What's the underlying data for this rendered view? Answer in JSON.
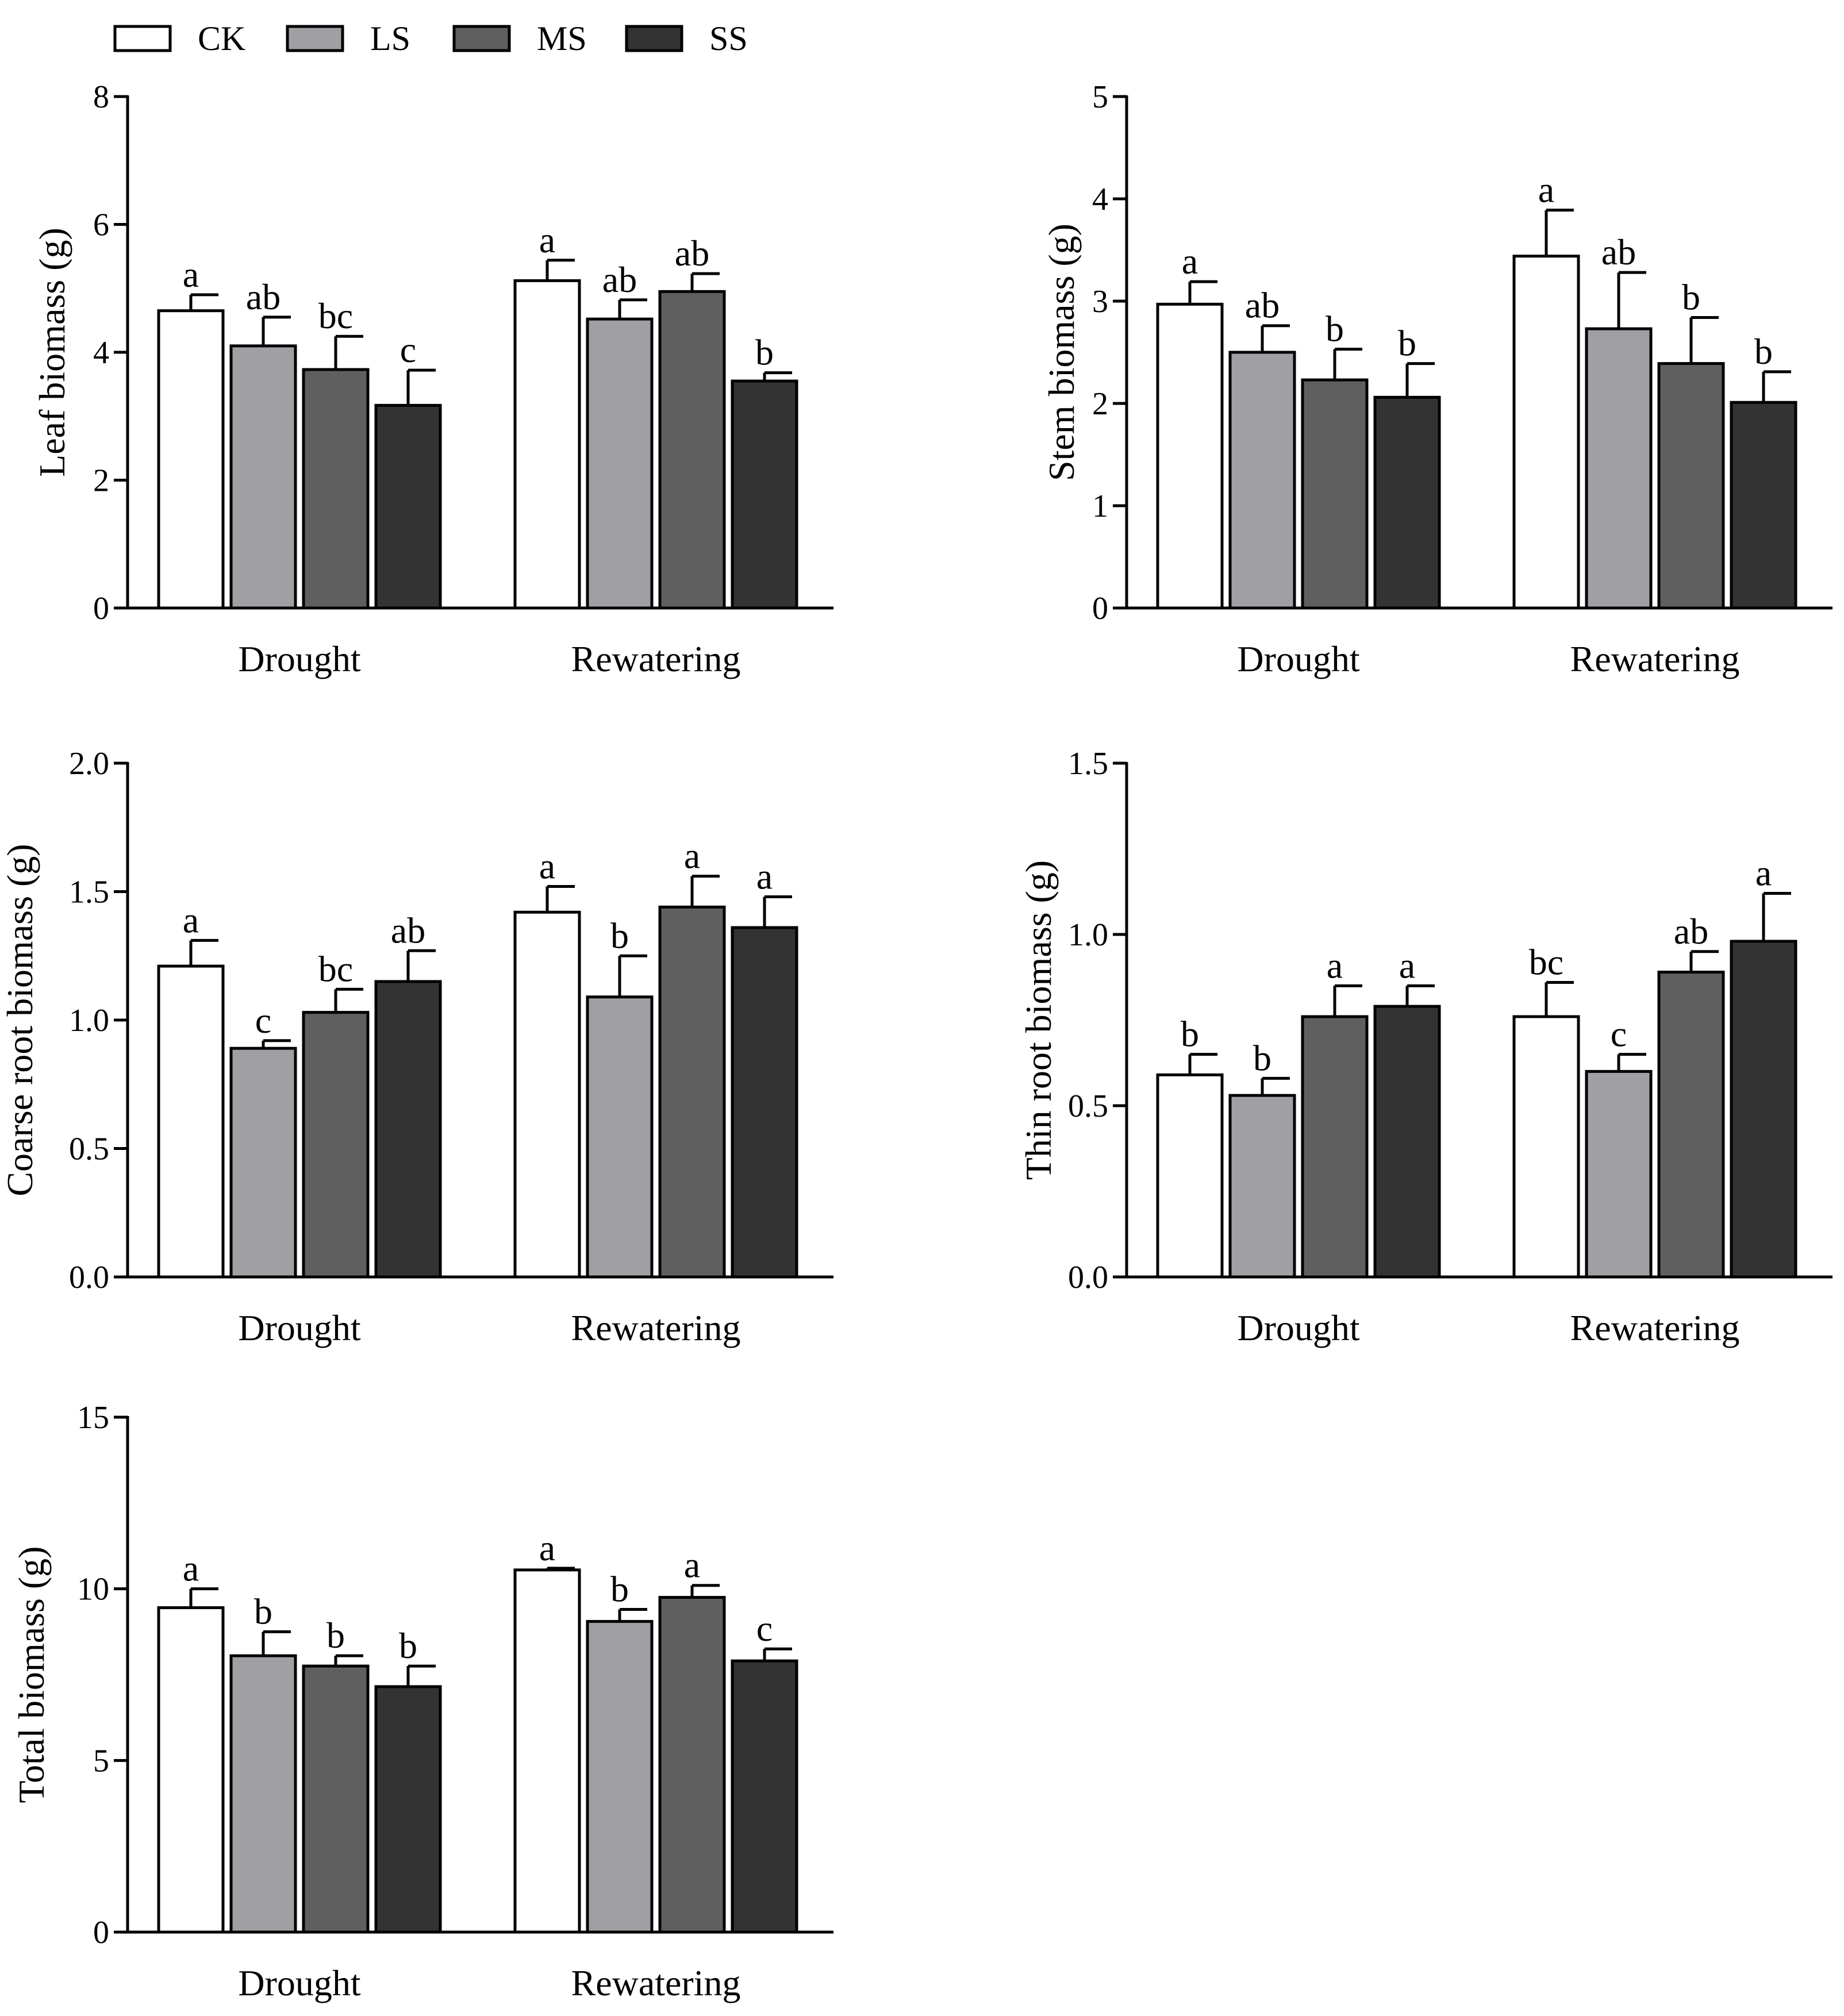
{
  "legend": {
    "items": [
      {
        "label": "CK",
        "color": "#ffffff"
      },
      {
        "label": "LS",
        "color": "#a0a0a4"
      },
      {
        "label": "MS",
        "color": "#5f5f5f"
      },
      {
        "label": "SS",
        "color": "#333333"
      }
    ]
  },
  "chart_data": [
    {
      "type": "bar",
      "id": "leaf",
      "ylabel": "Leaf biomass (g)",
      "categories": [
        "Drought",
        "Rewatering"
      ],
      "ylim": [
        0,
        8
      ],
      "yticks": [
        0,
        2,
        4,
        6,
        8
      ],
      "ytick_labels": [
        "0",
        "2",
        "4",
        "6",
        "8"
      ],
      "series": [
        {
          "name": "CK",
          "values": [
            4.65,
            5.12
          ],
          "errors": [
            0.25,
            0.32
          ],
          "labels": [
            "a",
            "a"
          ]
        },
        {
          "name": "LS",
          "values": [
            4.1,
            4.52
          ],
          "errors": [
            0.45,
            0.3
          ],
          "labels": [
            "ab",
            "ab"
          ]
        },
        {
          "name": "MS",
          "values": [
            3.73,
            4.95
          ],
          "errors": [
            0.52,
            0.28
          ],
          "labels": [
            "bc",
            "ab"
          ]
        },
        {
          "name": "SS",
          "values": [
            3.17,
            3.55
          ],
          "errors": [
            0.55,
            0.13
          ],
          "labels": [
            "c",
            "b"
          ]
        }
      ]
    },
    {
      "type": "bar",
      "id": "stem",
      "ylabel": "Stem biomass (g)",
      "categories": [
        "Drought",
        "Rewatering"
      ],
      "ylim": [
        0,
        5
      ],
      "yticks": [
        0,
        1,
        2,
        3,
        4,
        5
      ],
      "ytick_labels": [
        "0",
        "1",
        "2",
        "3",
        "4",
        "5"
      ],
      "series": [
        {
          "name": "CK",
          "values": [
            2.97,
            3.44
          ],
          "errors": [
            0.22,
            0.45
          ],
          "labels": [
            "a",
            "a"
          ]
        },
        {
          "name": "LS",
          "values": [
            2.5,
            2.73
          ],
          "errors": [
            0.26,
            0.55
          ],
          "labels": [
            "ab",
            "ab"
          ]
        },
        {
          "name": "MS",
          "values": [
            2.23,
            2.39
          ],
          "errors": [
            0.3,
            0.45
          ],
          "labels": [
            "b",
            "b"
          ]
        },
        {
          "name": "SS",
          "values": [
            2.06,
            2.01
          ],
          "errors": [
            0.33,
            0.3
          ],
          "labels": [
            "b",
            "b"
          ]
        }
      ]
    },
    {
      "type": "bar",
      "id": "coarse",
      "ylabel": "Coarse root biomass (g)",
      "categories": [
        "Drought",
        "Rewatering"
      ],
      "ylim": [
        0,
        2.0
      ],
      "yticks": [
        0,
        0.5,
        1.0,
        1.5,
        2.0
      ],
      "ytick_labels": [
        "0.0",
        "0.5",
        "1.0",
        "1.5",
        "2.0"
      ],
      "series": [
        {
          "name": "CK",
          "values": [
            1.21,
            1.42
          ],
          "errors": [
            0.1,
            0.1
          ],
          "labels": [
            "a",
            "a"
          ]
        },
        {
          "name": "LS",
          "values": [
            0.89,
            1.09
          ],
          "errors": [
            0.03,
            0.16
          ],
          "labels": [
            "c",
            "b"
          ]
        },
        {
          "name": "MS",
          "values": [
            1.03,
            1.44
          ],
          "errors": [
            0.09,
            0.12
          ],
          "labels": [
            "bc",
            "a"
          ]
        },
        {
          "name": "SS",
          "values": [
            1.15,
            1.36
          ],
          "errors": [
            0.12,
            0.12
          ],
          "labels": [
            "ab",
            "a"
          ]
        }
      ]
    },
    {
      "type": "bar",
      "id": "thin",
      "ylabel": "Thin root biomass (g)",
      "categories": [
        "Drought",
        "Rewatering"
      ],
      "ylim": [
        0,
        1.5
      ],
      "yticks": [
        0,
        0.5,
        1.0,
        1.5
      ],
      "ytick_labels": [
        "0.0",
        "0.5",
        "1.0",
        "1.5"
      ],
      "series": [
        {
          "name": "CK",
          "values": [
            0.59,
            0.76
          ],
          "errors": [
            0.06,
            0.1
          ],
          "labels": [
            "b",
            "bc"
          ]
        },
        {
          "name": "LS",
          "values": [
            0.53,
            0.6
          ],
          "errors": [
            0.05,
            0.05
          ],
          "labels": [
            "b",
            "c"
          ]
        },
        {
          "name": "MS",
          "values": [
            0.76,
            0.89
          ],
          "errors": [
            0.09,
            0.06
          ],
          "labels": [
            "a",
            "ab"
          ]
        },
        {
          "name": "SS",
          "values": [
            0.79,
            0.98
          ],
          "errors": [
            0.06,
            0.14
          ],
          "labels": [
            "a",
            "a"
          ]
        }
      ]
    },
    {
      "type": "bar",
      "id": "total",
      "ylabel": "Total biomass (g)",
      "categories": [
        "Drought",
        "Rewatering"
      ],
      "ylim": [
        0,
        15
      ],
      "yticks": [
        0,
        5,
        10,
        15
      ],
      "ytick_labels": [
        "0",
        "5",
        "10",
        "15"
      ],
      "series": [
        {
          "name": "CK",
          "values": [
            9.45,
            10.55
          ],
          "errors": [
            0.55,
            0.05
          ],
          "labels": [
            "a",
            "a"
          ]
        },
        {
          "name": "LS",
          "values": [
            8.05,
            9.05
          ],
          "errors": [
            0.7,
            0.35
          ],
          "labels": [
            "b",
            "b"
          ]
        },
        {
          "name": "MS",
          "values": [
            7.75,
            9.75
          ],
          "errors": [
            0.3,
            0.35
          ],
          "labels": [
            "b",
            "a"
          ]
        },
        {
          "name": "SS",
          "values": [
            7.15,
            7.9
          ],
          "errors": [
            0.6,
            0.35
          ],
          "labels": [
            "b",
            "c"
          ]
        }
      ]
    }
  ]
}
